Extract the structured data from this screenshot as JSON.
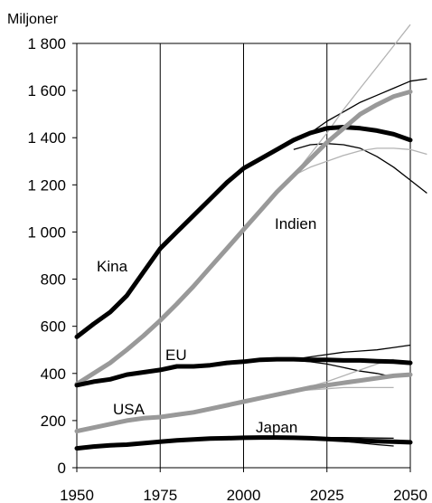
{
  "chart_data": {
    "type": "line",
    "unit_label": "Miljoner",
    "x_ticks": [
      1950,
      1975,
      2000,
      2025,
      2050
    ],
    "x_tick_labels": [
      "1950",
      "1975",
      "2000",
      "2025",
      "2050"
    ],
    "y_ticks": [
      0,
      200,
      400,
      600,
      800,
      1000,
      1200,
      1400,
      1600,
      1800
    ],
    "y_tick_labels": [
      "0",
      "200",
      "400",
      "600",
      "800",
      "1 000",
      "1 200",
      "1 400",
      "1 600",
      "1 800"
    ],
    "xlim": [
      1950,
      2050
    ],
    "ylim": [
      0,
      1800
    ],
    "grid": true,
    "series_labels": [
      "Kina",
      "Indien",
      "EU",
      "USA",
      "Japan"
    ],
    "series": [
      {
        "name": "Kina",
        "color": "#000000",
        "x": [
          1950,
          1955,
          1960,
          1965,
          1970,
          1975,
          1980,
          1985,
          1990,
          1995,
          2000,
          2005,
          2010,
          2015,
          2020,
          2025,
          2030,
          2035,
          2040,
          2045,
          2050
        ],
        "values": [
          555,
          610,
          660,
          730,
          830,
          930,
          1000,
          1070,
          1140,
          1210,
          1270,
          1310,
          1350,
          1390,
          1420,
          1440,
          1445,
          1440,
          1430,
          1415,
          1390
        ],
        "variants": [
          [
            1390,
            1420,
            1470,
            1510,
            1550,
            1580,
            1610,
            1640,
            1650
          ],
          [
            1350,
            1370,
            1375,
            1370,
            1355,
            1320,
            1275,
            1220,
            1165
          ]
        ]
      },
      {
        "name": "Indien",
        "color": "#999999",
        "x": [
          1950,
          1955,
          1960,
          1965,
          1970,
          1975,
          1980,
          1985,
          1990,
          1995,
          2000,
          2005,
          2010,
          2015,
          2020,
          2025,
          2030,
          2035,
          2040,
          2045,
          2050
        ],
        "values": [
          355,
          400,
          445,
          500,
          560,
          625,
          695,
          770,
          850,
          930,
          1010,
          1090,
          1170,
          1240,
          1310,
          1380,
          1440,
          1500,
          1540,
          1575,
          1595
        ],
        "variants": [
          [
            1240,
            1330,
            1420,
            1520,
            1610,
            1700,
            1790,
            1880
          ],
          [
            1240,
            1275,
            1300,
            1325,
            1345,
            1355,
            1355,
            1350,
            1330
          ]
        ]
      },
      {
        "name": "EU",
        "color": "#000000",
        "x": [
          1950,
          1955,
          1960,
          1965,
          1970,
          1975,
          1980,
          1985,
          1990,
          1995,
          2000,
          2005,
          2010,
          2015,
          2020,
          2025,
          2030,
          2035,
          2040,
          2045,
          2050
        ],
        "values": [
          350,
          365,
          375,
          395,
          405,
          415,
          430,
          430,
          435,
          445,
          450,
          458,
          460,
          460,
          458,
          458,
          455,
          455,
          452,
          450,
          445
        ],
        "variants": [
          [
            460,
            470,
            480,
            490,
            495,
            500,
            510,
            520
          ],
          [
            455,
            450,
            440,
            425,
            410,
            400,
            385
          ]
        ]
      },
      {
        "name": "USA",
        "color": "#999999",
        "x": [
          1950,
          1955,
          1960,
          1965,
          1970,
          1975,
          1980,
          1985,
          1990,
          1995,
          2000,
          2005,
          2010,
          2015,
          2020,
          2025,
          2030,
          2035,
          2040,
          2045,
          2050
        ],
        "values": [
          155,
          170,
          185,
          200,
          210,
          215,
          225,
          235,
          250,
          265,
          280,
          295,
          310,
          325,
          340,
          350,
          360,
          370,
          380,
          390,
          395
        ],
        "variants": [
          [
            325,
            345,
            365,
            390,
            415,
            440,
            460
          ],
          [
            325,
            330,
            335,
            340,
            340,
            340,
            340
          ]
        ]
      },
      {
        "name": "Japan",
        "color": "#000000",
        "x": [
          1950,
          1955,
          1960,
          1965,
          1970,
          1975,
          1980,
          1985,
          1990,
          1995,
          2000,
          2005,
          2010,
          2015,
          2020,
          2025,
          2030,
          2035,
          2040,
          2045,
          2050
        ],
        "values": [
          82,
          90,
          95,
          98,
          104,
          110,
          116,
          120,
          124,
          125,
          127,
          128,
          128,
          127,
          125,
          122,
          118,
          115,
          112,
          110,
          108
        ],
        "variants": [
          [
            127,
            128,
            128,
            128,
            127,
            126,
            125
          ],
          [
            127,
            125,
            120,
            112,
            105,
            98,
            92
          ]
        ]
      }
    ]
  }
}
